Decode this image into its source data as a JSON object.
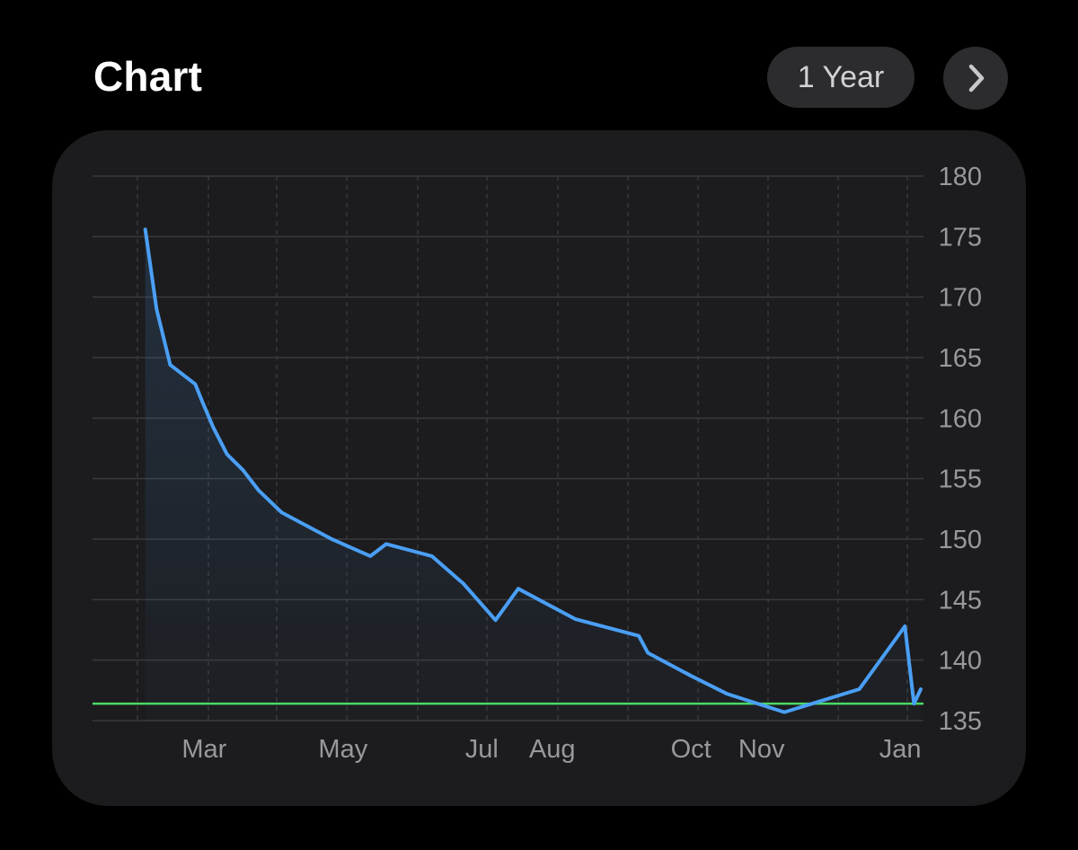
{
  "header": {
    "title": "Chart",
    "range_label": "1 Year",
    "next_icon": "chevron-right-icon"
  },
  "colors": {
    "background": "#000000",
    "card": "#1c1c1e",
    "line": "#4a9ff5",
    "goal_line": "#4cd964",
    "grid": "#3a3a3c",
    "tick_text": "#98989d"
  },
  "chart_data": {
    "type": "line",
    "title": "",
    "xlabel": "",
    "ylabel": "",
    "ylim": [
      135,
      180
    ],
    "y_ticks": [
      135,
      140,
      145,
      150,
      155,
      160,
      165,
      170,
      175,
      180
    ],
    "x_range": [
      "2023-02-17",
      "2024-01-29"
    ],
    "x_ticks": [
      {
        "label": "Mar",
        "date": "2023-03-01"
      },
      {
        "label": "May",
        "date": "2023-05-01"
      },
      {
        "label": "Jul",
        "date": "2023-07-01"
      },
      {
        "label": "Aug",
        "date": "2023-08-01"
      },
      {
        "label": "Oct",
        "date": "2023-10-01"
      },
      {
        "label": "Nov",
        "date": "2023-11-01"
      },
      {
        "label": "Jan",
        "date": "2024-01-01"
      }
    ],
    "grid": true,
    "axis_side": "right",
    "goal_line": 136.4,
    "series": [
      {
        "values": [
          {
            "x": "2023-02-22",
            "y": 175.6
          },
          {
            "x": "2023-02-27",
            "y": 169
          },
          {
            "x": "2023-03-05",
            "y": 164.4
          },
          {
            "x": "2023-03-16",
            "y": 162.8
          },
          {
            "x": "2023-03-19",
            "y": 161.4
          },
          {
            "x": "2023-03-24",
            "y": 159.2
          },
          {
            "x": "2023-03-30",
            "y": 157
          },
          {
            "x": "2023-04-06",
            "y": 155.7
          },
          {
            "x": "2023-04-13",
            "y": 154
          },
          {
            "x": "2023-04-23",
            "y": 152.2
          },
          {
            "x": "2023-05-01",
            "y": 151.4
          },
          {
            "x": "2023-05-15",
            "y": 150
          },
          {
            "x": "2023-06-01",
            "y": 148.6
          },
          {
            "x": "2023-06-08",
            "y": 149.6
          },
          {
            "x": "2023-06-28",
            "y": 148.6
          },
          {
            "x": "2023-07-12",
            "y": 146.3
          },
          {
            "x": "2023-07-26",
            "y": 143.3
          },
          {
            "x": "2023-08-05",
            "y": 145.9
          },
          {
            "x": "2023-08-30",
            "y": 143.4
          },
          {
            "x": "2023-09-27",
            "y": 142
          },
          {
            "x": "2023-10-01",
            "y": 140.6
          },
          {
            "x": "2023-10-20",
            "y": 138.7
          },
          {
            "x": "2023-11-05",
            "y": 137.2
          },
          {
            "x": "2023-11-30",
            "y": 135.7
          },
          {
            "x": "2024-01-02",
            "y": 137.6
          },
          {
            "x": "2024-01-22",
            "y": 142.8
          },
          {
            "x": "2024-01-26",
            "y": 136.4
          },
          {
            "x": "2024-01-29",
            "y": 137.6
          }
        ]
      }
    ]
  }
}
